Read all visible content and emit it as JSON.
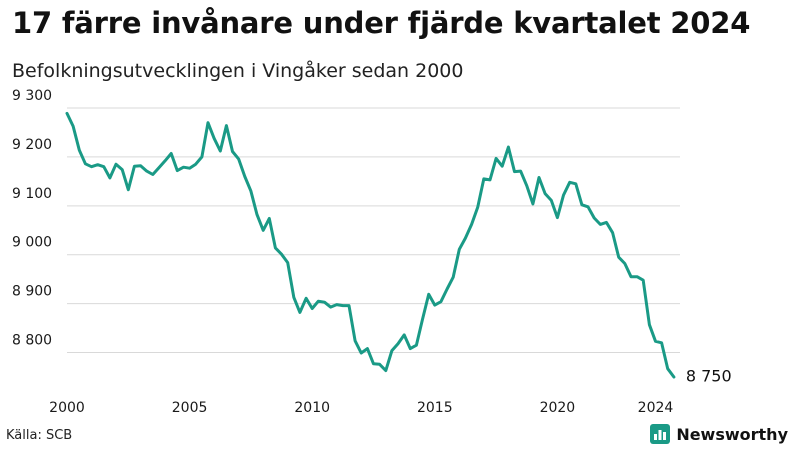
{
  "header": {
    "title": "17 färre invånare under fjärde kvartalet 2024",
    "subtitle": "Befolkningsutvecklingen i Vingåker sedan 2000"
  },
  "footer": {
    "source": "Källa: SCB",
    "brand": "Newsworthy"
  },
  "colors": {
    "line": "#1a9a86",
    "brand_icon": "#1a9a86",
    "grid": "#d9d9d9"
  },
  "icons": {
    "brand_logo": "bar-chart-icon"
  },
  "chart_data": {
    "type": "line",
    "title": "17 färre invånare under fjärde kvartalet 2024",
    "subtitle": "Befolkningsutvecklingen i Vingåker sedan 2000",
    "xlabel": "",
    "ylabel": "",
    "x_ticks": [
      2000,
      2005,
      2010,
      2015,
      2020,
      2024
    ],
    "x_tick_labels": [
      "2000",
      "2005",
      "2010",
      "2015",
      "2020",
      "2024"
    ],
    "y_ticks": [
      8800,
      8900,
      9000,
      9100,
      9200,
      9300
    ],
    "y_tick_labels": [
      "8 800",
      "8 900",
      "9 000",
      "9 100",
      "9 200",
      "9 300"
    ],
    "xlim": [
      2000,
      2025
    ],
    "ylim": [
      8750,
      9300
    ],
    "grid": true,
    "legend": "none",
    "end_label": "8 750",
    "series": [
      {
        "x": [
          2000.0,
          2000.25,
          2000.5,
          2000.75,
          2001.0,
          2001.25,
          2001.5,
          2001.75,
          2002.0,
          2002.25,
          2002.5,
          2002.75,
          2003.0,
          2003.25,
          2003.5,
          2003.75,
          2004.0,
          2004.25,
          2004.5,
          2004.75,
          2005.0,
          2005.25,
          2005.5,
          2005.75,
          2006.0,
          2006.25,
          2006.5,
          2006.75,
          2007.0,
          2007.25,
          2007.5,
          2007.75,
          2008.0,
          2008.25,
          2008.5,
          2008.75,
          2009.0,
          2009.25,
          2009.5,
          2009.75,
          2010.0,
          2010.25,
          2010.5,
          2010.75,
          2011.0,
          2011.25,
          2011.5,
          2011.75,
          2012.0,
          2012.25,
          2012.5,
          2012.75,
          2013.0,
          2013.25,
          2013.5,
          2013.75,
          2014.0,
          2014.25,
          2014.5,
          2014.75,
          2015.0,
          2015.25,
          2015.5,
          2015.75,
          2016.0,
          2016.25,
          2016.5,
          2016.75,
          2017.0,
          2017.25,
          2017.5,
          2017.75,
          2018.0,
          2018.25,
          2018.5,
          2018.75,
          2019.0,
          2019.25,
          2019.5,
          2019.75,
          2020.0,
          2020.25,
          2020.5,
          2020.75,
          2021.0,
          2021.25,
          2021.5,
          2021.75,
          2022.0,
          2022.25,
          2022.5,
          2022.75,
          2023.0,
          2023.25,
          2023.5,
          2023.75,
          2024.0,
          2024.25,
          2024.5,
          2024.75
        ],
        "y": [
          9289,
          9263,
          9214,
          9186,
          9180,
          9184,
          9180,
          9157,
          9185,
          9174,
          9133,
          9181,
          9182,
          9171,
          9164,
          9178,
          9192,
          9207,
          9172,
          9179,
          9177,
          9185,
          9200,
          9270,
          9238,
          9212,
          9264,
          9211,
          9196,
          9160,
          9130,
          9082,
          9050,
          9074,
          9014,
          9001,
          8984,
          8913,
          8882,
          8911,
          8890,
          8905,
          8903,
          8893,
          8898,
          8896,
          8896,
          8824,
          8799,
          8808,
          8777,
          8776,
          8763,
          8804,
          8818,
          8836,
          8808,
          8815,
          8868,
          8919,
          8897,
          8904,
          8930,
          8954,
          9011,
          9034,
          9062,
          9097,
          9155,
          9153,
          9197,
          9181,
          9220,
          9170,
          9171,
          9141,
          9104,
          9158,
          9125,
          9111,
          9076,
          9122,
          9148,
          9145,
          9102,
          9098,
          9075,
          9062,
          9066,
          9045,
          8995,
          8982,
          8955,
          8955,
          8948,
          8857,
          8823,
          8820,
          8767,
          8750
        ]
      }
    ]
  }
}
